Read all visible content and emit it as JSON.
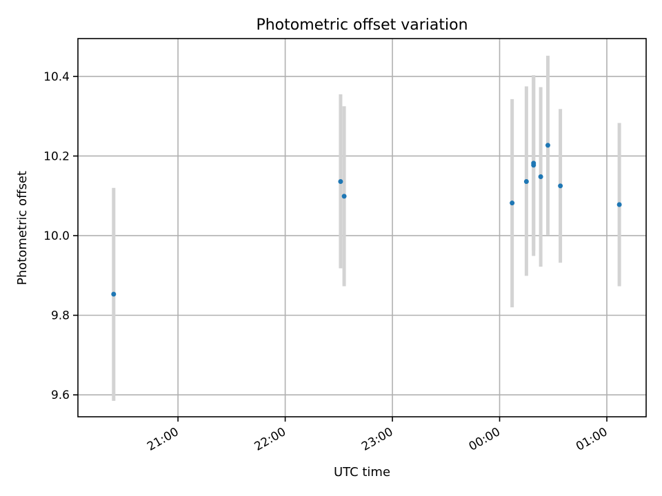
{
  "chart_data": {
    "type": "scatter",
    "title": "Photometric offset variation",
    "xlabel": "UTC time",
    "ylabel": "Photometric offset",
    "xlim": [
      "20:04",
      "01:22"
    ],
    "ylim": [
      9.545,
      10.495
    ],
    "grid": true,
    "x_ticks": [
      {
        "label": "21:00",
        "value": "21:00"
      },
      {
        "label": "22:00",
        "value": "22:00"
      },
      {
        "label": "23:00",
        "value": "23:00"
      },
      {
        "label": "00:00",
        "value": "00:00"
      },
      {
        "label": "01:00",
        "value": "01:00"
      }
    ],
    "y_ticks": [
      {
        "label": "9.6",
        "value": 9.6
      },
      {
        "label": "9.8",
        "value": 9.8
      },
      {
        "label": "10.0",
        "value": 10.0
      },
      {
        "label": "10.2",
        "value": 10.2
      },
      {
        "label": "10.4",
        "value": 10.4
      }
    ],
    "points": [
      {
        "x": "20:24",
        "y": 9.853,
        "low": 9.585,
        "high": 10.12,
        "color": "#1f77b4"
      },
      {
        "x": "22:31",
        "y": 10.136,
        "low": 9.918,
        "high": 10.355,
        "color": "#1f77b4"
      },
      {
        "x": "22:33",
        "y": 10.099,
        "low": 9.873,
        "high": 10.325,
        "color": "#1f77b4"
      },
      {
        "x": "00:07",
        "y": 10.082,
        "low": 9.82,
        "high": 10.343,
        "color": "#1f77b4"
      },
      {
        "x": "00:15",
        "y": 10.136,
        "low": 9.899,
        "high": 10.375,
        "color": "#1f77b4"
      },
      {
        "x": "00:19",
        "y": 10.177,
        "low": 9.949,
        "high": 10.403,
        "color": "#1f77b4"
      },
      {
        "x": "00:19",
        "y": 10.182,
        "low": 9.963,
        "high": 10.4,
        "color": "#1f77b4"
      },
      {
        "x": "00:23",
        "y": 10.148,
        "low": 9.922,
        "high": 10.373,
        "color": "#1f77b4"
      },
      {
        "x": "00:27",
        "y": 10.227,
        "low": 10.002,
        "high": 10.452,
        "color": "#1f77b4"
      },
      {
        "x": "00:34",
        "y": 10.125,
        "low": 9.932,
        "high": 10.318,
        "color": "#1f77b4"
      },
      {
        "x": "01:07",
        "y": 10.078,
        "low": 9.873,
        "high": 10.283,
        "color": "#1f77b4"
      }
    ],
    "errorbar_color": "#d3d3d3"
  }
}
